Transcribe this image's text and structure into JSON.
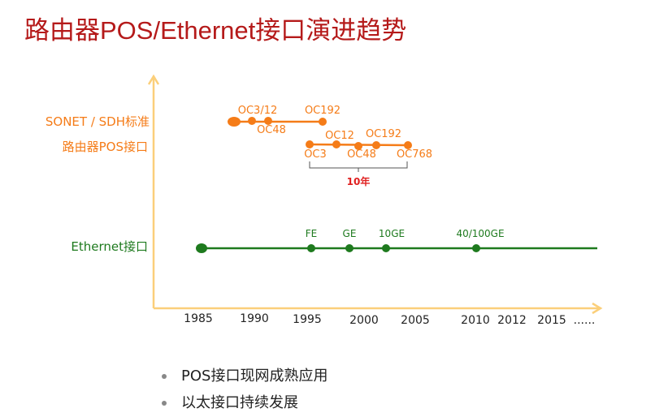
{
  "title": "路由器POS/Ethernet接口演进趋势",
  "rows": {
    "sonet": "SONET / SDH标准",
    "router_pos": "路由器POS接口",
    "ethernet": "Ethernet接口"
  },
  "sonet_markers": {
    "oc3_12": "OC3/12",
    "oc48": "OC48",
    "oc192": "OC192"
  },
  "pos_markers": {
    "oc3": "OC3",
    "oc12": "OC12",
    "oc48": "OC48",
    "oc192": "OC192",
    "oc768": "OC768"
  },
  "span_label": "10年",
  "eth_markers": {
    "fe": "FE",
    "ge": "GE",
    "tenge": "10GE",
    "hundredge": "40/100GE"
  },
  "years": [
    "1985",
    "1990",
    "1995",
    "2000",
    "2005",
    "2010",
    "2012",
    "2015",
    "......"
  ],
  "bullets": [
    "POS接口现网成熟应用",
    "以太接口持续发展"
  ],
  "colors": {
    "title": "#b51a1a",
    "sonet": "#f57c18",
    "ethernet": "#1e7a1e",
    "axis": "#fbcf7a",
    "span": "#e02020"
  }
}
